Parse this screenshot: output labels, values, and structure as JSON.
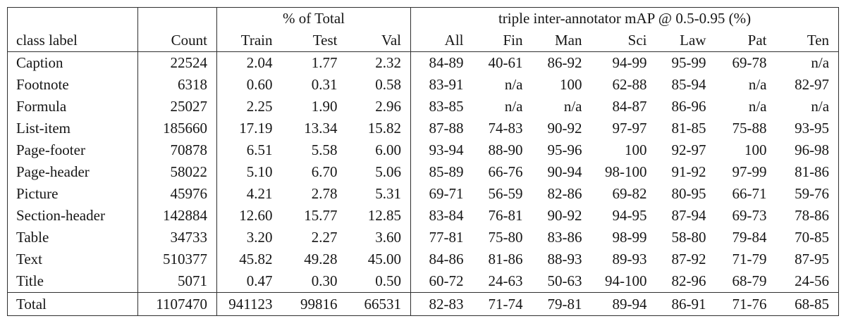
{
  "table": {
    "header": {
      "group_pct": "% of Total",
      "group_map": "triple inter-annotator mAP @ 0.5-0.95 (%)",
      "columns": [
        "class label",
        "Count",
        "Train",
        "Test",
        "Val",
        "All",
        "Fin",
        "Man",
        "Sci",
        "Law",
        "Pat",
        "Ten"
      ]
    },
    "rows": [
      {
        "cells": [
          "Caption",
          "22524",
          "2.04",
          "1.77",
          "2.32",
          "84-89",
          "40-61",
          "86-92",
          "94-99",
          "95-99",
          "69-78",
          "n/a"
        ]
      },
      {
        "cells": [
          "Footnote",
          "6318",
          "0.60",
          "0.31",
          "0.58",
          "83-91",
          "n/a",
          "100",
          "62-88",
          "85-94",
          "n/a",
          "82-97"
        ]
      },
      {
        "cells": [
          "Formula",
          "25027",
          "2.25",
          "1.90",
          "2.96",
          "83-85",
          "n/a",
          "n/a",
          "84-87",
          "86-96",
          "n/a",
          "n/a"
        ]
      },
      {
        "cells": [
          "List-item",
          "185660",
          "17.19",
          "13.34",
          "15.82",
          "87-88",
          "74-83",
          "90-92",
          "97-97",
          "81-85",
          "75-88",
          "93-95"
        ]
      },
      {
        "cells": [
          "Page-footer",
          "70878",
          "6.51",
          "5.58",
          "6.00",
          "93-94",
          "88-90",
          "95-96",
          "100",
          "92-97",
          "100",
          "96-98"
        ]
      },
      {
        "cells": [
          "Page-header",
          "58022",
          "5.10",
          "6.70",
          "5.06",
          "85-89",
          "66-76",
          "90-94",
          "98-100",
          "91-92",
          "97-99",
          "81-86"
        ]
      },
      {
        "cells": [
          "Picture",
          "45976",
          "4.21",
          "2.78",
          "5.31",
          "69-71",
          "56-59",
          "82-86",
          "69-82",
          "80-95",
          "66-71",
          "59-76"
        ]
      },
      {
        "cells": [
          "Section-header",
          "142884",
          "12.60",
          "15.77",
          "12.85",
          "83-84",
          "76-81",
          "90-92",
          "94-95",
          "87-94",
          "69-73",
          "78-86"
        ]
      },
      {
        "cells": [
          "Table",
          "34733",
          "3.20",
          "2.27",
          "3.60",
          "77-81",
          "75-80",
          "83-86",
          "98-99",
          "58-80",
          "79-84",
          "70-85"
        ]
      },
      {
        "cells": [
          "Text",
          "510377",
          "45.82",
          "49.28",
          "45.00",
          "84-86",
          "81-86",
          "88-93",
          "89-93",
          "87-92",
          "71-79",
          "87-95"
        ]
      },
      {
        "cells": [
          "Title",
          "5071",
          "0.47",
          "0.30",
          "0.50",
          "60-72",
          "24-63",
          "50-63",
          "94-100",
          "82-96",
          "68-79",
          "24-56"
        ]
      },
      {
        "cells": [
          "Total",
          "1107470",
          "941123",
          "99816",
          "66531",
          "82-83",
          "71-74",
          "79-81",
          "89-94",
          "86-91",
          "71-76",
          "68-85"
        ],
        "total": true
      }
    ]
  }
}
